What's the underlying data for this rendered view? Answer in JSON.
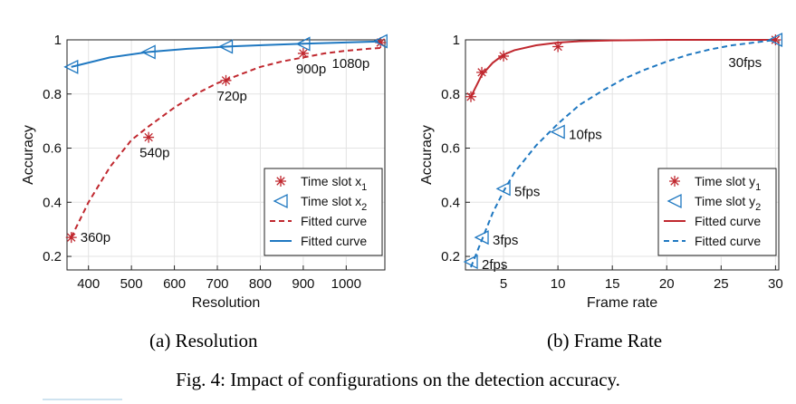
{
  "figure": {
    "caption": "Fig. 4: Impact of configurations on the detection accuracy.",
    "subcaptions": [
      "(a) Resolution",
      "(b) Frame Rate"
    ]
  },
  "colors": {
    "red": "#c0282f",
    "blue": "#1f78c1",
    "grid": "#e3e3e3",
    "axis": "#222222"
  },
  "chart_data": [
    {
      "type": "line",
      "xlabel": "Resolution",
      "ylabel": "Accuracy",
      "xlim": [
        350,
        1090
      ],
      "ylim": [
        0.15,
        1.0
      ],
      "xticks": [
        400,
        500,
        600,
        700,
        800,
        900,
        1000
      ],
      "yticks": [
        0.2,
        0.4,
        0.6,
        0.8,
        1
      ],
      "grid": true,
      "legend_position": "bottom-right",
      "series": [
        {
          "name": "Time slot x1",
          "marker": "star",
          "color": "#c0282f",
          "x": [
            360,
            540,
            720,
            900,
            1080
          ],
          "y": [
            0.27,
            0.64,
            0.85,
            0.95,
            0.99
          ]
        },
        {
          "name": "Time slot x2",
          "marker": "triangle-left",
          "color": "#1f78c1",
          "x": [
            360,
            540,
            720,
            900,
            1080
          ],
          "y": [
            0.9,
            0.955,
            0.975,
            0.985,
            0.995
          ]
        },
        {
          "name": "Fitted curve",
          "line": "dashed",
          "color": "#c0282f",
          "x": [
            360,
            400,
            450,
            500,
            540,
            600,
            650,
            700,
            750,
            800,
            850,
            900,
            950,
            1000,
            1050,
            1080
          ],
          "y": [
            0.27,
            0.4,
            0.53,
            0.63,
            0.68,
            0.75,
            0.8,
            0.84,
            0.87,
            0.9,
            0.92,
            0.935,
            0.95,
            0.96,
            0.967,
            0.97
          ]
        },
        {
          "name": "Fitted curve",
          "line": "solid",
          "color": "#1f78c1",
          "x": [
            360,
            450,
            540,
            630,
            720,
            810,
            900,
            990,
            1080
          ],
          "y": [
            0.9,
            0.935,
            0.955,
            0.967,
            0.975,
            0.981,
            0.986,
            0.99,
            0.994
          ]
        }
      ],
      "annotations": [
        {
          "text": "360p",
          "x": 360,
          "y": 0.27
        },
        {
          "text": "540p",
          "x": 540,
          "y": 0.64
        },
        {
          "text": "720p",
          "x": 720,
          "y": 0.85
        },
        {
          "text": "900p",
          "x": 900,
          "y": 0.95
        },
        {
          "text": "1080p",
          "x": 1080,
          "y": 0.99
        }
      ]
    },
    {
      "type": "line",
      "xlabel": "Frame rate",
      "ylabel": "Accuracy",
      "xlim": [
        1.5,
        30.3
      ],
      "ylim": [
        0.15,
        1.0
      ],
      "xticks": [
        5,
        10,
        15,
        20,
        25,
        30
      ],
      "yticks": [
        0.2,
        0.4,
        0.6,
        0.8,
        1
      ],
      "grid": true,
      "legend_position": "bottom-right",
      "series": [
        {
          "name": "Time slot y1",
          "marker": "star",
          "color": "#c0282f",
          "x": [
            2,
            3,
            5,
            10,
            30
          ],
          "y": [
            0.79,
            0.88,
            0.94,
            0.975,
            1.0
          ]
        },
        {
          "name": "Time slot y2",
          "marker": "triangle-left",
          "color": "#1f78c1",
          "x": [
            2,
            3,
            5,
            10,
            30
          ],
          "y": [
            0.18,
            0.27,
            0.45,
            0.66,
            1.0
          ]
        },
        {
          "name": "Fitted curve",
          "line": "solid",
          "color": "#c0282f",
          "x": [
            2,
            3,
            4,
            5,
            6,
            8,
            10,
            12,
            15,
            20,
            25,
            30
          ],
          "y": [
            0.79,
            0.87,
            0.915,
            0.945,
            0.962,
            0.98,
            0.99,
            0.995,
            0.998,
            1.0,
            1.0,
            1.0
          ]
        },
        {
          "name": "Fitted curve",
          "line": "dashed",
          "color": "#1f78c1",
          "x": [
            2,
            3,
            4,
            5,
            6,
            8,
            10,
            12,
            14,
            16,
            18,
            20,
            22,
            24,
            26,
            28,
            30
          ],
          "y": [
            0.16,
            0.26,
            0.36,
            0.44,
            0.51,
            0.61,
            0.69,
            0.76,
            0.81,
            0.855,
            0.89,
            0.92,
            0.945,
            0.965,
            0.98,
            0.99,
            1.0
          ]
        }
      ],
      "annotations": [
        {
          "text": "2fps",
          "x": 2,
          "y": 0.18
        },
        {
          "text": "3fps",
          "x": 3,
          "y": 0.27
        },
        {
          "text": "5fps",
          "x": 5,
          "y": 0.45
        },
        {
          "text": "10fps",
          "x": 10,
          "y": 0.66
        },
        {
          "text": "30fps",
          "x": 30,
          "y": 1.0
        }
      ]
    }
  ]
}
